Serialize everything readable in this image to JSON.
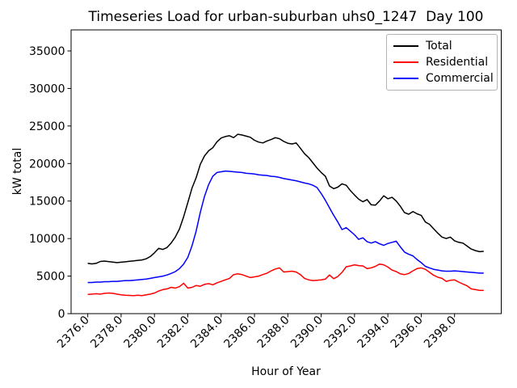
{
  "chart_data": {
    "type": "line",
    "title": "Timeseries Load for urban-suburban uhs0_1247  Day 100",
    "xlabel": "Hour of Year",
    "ylabel": "kW total",
    "grid": false,
    "background": "#ffffff",
    "legend_position": "upper right",
    "xlim": [
      2375.0,
      2400.8
    ],
    "ylim": [
      0,
      37800
    ],
    "xtick_labels": [
      "2376.0",
      "2378.0",
      "2380.0",
      "2382.0",
      "2384.0",
      "2386.0",
      "2388.0",
      "2390.0",
      "2392.0",
      "2394.0",
      "2396.0",
      "2398.0"
    ],
    "ytick_labels": [
      "0",
      "5000",
      "10000",
      "15000",
      "20000",
      "25000",
      "30000",
      "35000"
    ],
    "x": [
      2376.0,
      2376.25,
      2376.5,
      2376.75,
      2377.0,
      2377.25,
      2377.5,
      2377.75,
      2378.0,
      2378.25,
      2378.5,
      2378.75,
      2379.0,
      2379.25,
      2379.5,
      2379.75,
      2380.0,
      2380.25,
      2380.5,
      2380.75,
      2381.0,
      2381.25,
      2381.5,
      2381.75,
      2382.0,
      2382.25,
      2382.5,
      2382.75,
      2383.0,
      2383.25,
      2383.5,
      2383.75,
      2384.0,
      2384.25,
      2384.5,
      2384.75,
      2385.0,
      2385.25,
      2385.5,
      2385.75,
      2386.0,
      2386.25,
      2386.5,
      2386.75,
      2387.0,
      2387.25,
      2387.5,
      2387.75,
      2388.0,
      2388.25,
      2388.5,
      2388.75,
      2389.0,
      2389.25,
      2389.5,
      2389.75,
      2390.0,
      2390.25,
      2390.5,
      2390.75,
      2391.0,
      2391.25,
      2391.5,
      2391.75,
      2392.0,
      2392.25,
      2392.5,
      2392.75,
      2393.0,
      2393.25,
      2393.5,
      2393.75,
      2394.0,
      2394.25,
      2394.5,
      2394.75,
      2395.0,
      2395.25,
      2395.5,
      2395.75,
      2396.0,
      2396.25,
      2396.5,
      2396.75,
      2397.0,
      2397.25,
      2397.5,
      2397.75,
      2398.0,
      2398.25,
      2398.5,
      2398.75,
      2399.0,
      2399.25,
      2399.5,
      2399.75
    ],
    "series": [
      {
        "name": "Total",
        "color": "#000000",
        "values": [
          6700,
          6620,
          6700,
          6950,
          7000,
          6930,
          6870,
          6800,
          6850,
          6900,
          6980,
          7020,
          7100,
          7150,
          7300,
          7600,
          8100,
          8700,
          8550,
          8800,
          9400,
          10200,
          11300,
          12900,
          14800,
          16700,
          18100,
          19900,
          21000,
          21700,
          22100,
          22900,
          23400,
          23600,
          23700,
          23450,
          23900,
          23800,
          23650,
          23500,
          23100,
          22850,
          22750,
          23000,
          23200,
          23450,
          23300,
          22950,
          22700,
          22600,
          22750,
          22050,
          21300,
          20800,
          20100,
          19400,
          18800,
          18300,
          17000,
          16650,
          16850,
          17300,
          17100,
          16400,
          15800,
          15250,
          14900,
          15200,
          14500,
          14450,
          15000,
          15700,
          15300,
          15500,
          15000,
          14300,
          13450,
          13250,
          13600,
          13300,
          13100,
          12200,
          11900,
          11300,
          10700,
          10200,
          10000,
          10200,
          9700,
          9500,
          9400,
          9000,
          8600,
          8400,
          8250,
          8300
        ]
      },
      {
        "name": "Residential",
        "color": "#ff0000",
        "values": [
          2550,
          2600,
          2650,
          2600,
          2700,
          2750,
          2700,
          2600,
          2500,
          2450,
          2420,
          2400,
          2450,
          2400,
          2500,
          2600,
          2750,
          3000,
          3200,
          3300,
          3500,
          3400,
          3600,
          4050,
          3400,
          3500,
          3750,
          3650,
          3900,
          4000,
          3850,
          4100,
          4300,
          4500,
          4700,
          5200,
          5300,
          5200,
          5000,
          4800,
          4900,
          5000,
          5200,
          5400,
          5700,
          5950,
          6100,
          5550,
          5600,
          5650,
          5550,
          5200,
          4700,
          4500,
          4400,
          4450,
          4500,
          4600,
          5150,
          4650,
          4950,
          5500,
          6250,
          6350,
          6500,
          6400,
          6350,
          6000,
          6100,
          6300,
          6600,
          6500,
          6200,
          5800,
          5600,
          5300,
          5200,
          5350,
          5700,
          6000,
          6100,
          5900,
          5500,
          5100,
          4850,
          4700,
          4300,
          4450,
          4500,
          4200,
          3950,
          3700,
          3300,
          3200,
          3100,
          3100
        ]
      },
      {
        "name": "Commercial",
        "color": "#0000ff",
        "values": [
          4150,
          4150,
          4200,
          4200,
          4250,
          4250,
          4300,
          4300,
          4350,
          4400,
          4400,
          4450,
          4500,
          4550,
          4600,
          4700,
          4800,
          4900,
          5000,
          5150,
          5350,
          5600,
          6000,
          6600,
          7500,
          9000,
          11000,
          13500,
          15600,
          17200,
          18300,
          18800,
          18900,
          19000,
          18950,
          18900,
          18850,
          18800,
          18700,
          18650,
          18600,
          18500,
          18450,
          18400,
          18300,
          18250,
          18150,
          18000,
          17900,
          17800,
          17700,
          17550,
          17400,
          17300,
          17100,
          16800,
          16000,
          15100,
          14100,
          13100,
          12200,
          11200,
          11450,
          11000,
          10500,
          9900,
          10100,
          9600,
          9400,
          9600,
          9300,
          9100,
          9350,
          9500,
          9650,
          8900,
          8200,
          7900,
          7700,
          7200,
          6800,
          6300,
          6100,
          5900,
          5800,
          5700,
          5650,
          5650,
          5700,
          5650,
          5600,
          5550,
          5500,
          5450,
          5400,
          5400
        ]
      }
    ]
  }
}
